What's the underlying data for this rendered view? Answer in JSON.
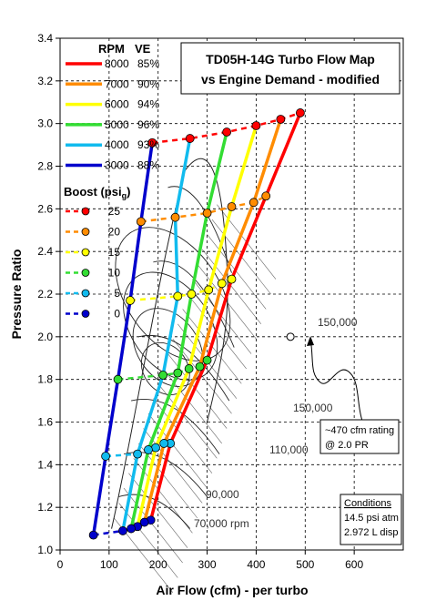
{
  "chart_data": {
    "type": "line",
    "title_lines": [
      "TD05H-14G Turbo Flow Map",
      "vs Engine Demand - modified"
    ],
    "xlabel": "Air Flow (cfm) - per turbo",
    "ylabel": "Pressure Ratio",
    "xlim": [
      0,
      700
    ],
    "ylim": [
      1.0,
      3.4
    ],
    "xticks": [
      0,
      100,
      200,
      300,
      400,
      500,
      600
    ],
    "yticks": [
      1.0,
      1.2,
      1.4,
      1.6,
      1.8,
      2.0,
      2.2,
      2.4,
      2.6,
      2.8,
      3.0,
      3.2,
      3.4
    ],
    "grid": true,
    "legend_rpm_header": {
      "rpm": "RPM",
      "ve": "VE"
    },
    "rpm_series": [
      {
        "rpm": "8000",
        "ve": "85%",
        "color": "#ff0000",
        "points": [
          [
            185,
            1.14
          ],
          [
            225,
            1.5
          ],
          [
            300,
            1.89
          ],
          [
            350,
            2.27
          ],
          [
            420,
            2.66
          ],
          [
            490,
            3.05
          ]
        ]
      },
      {
        "rpm": "7000",
        "ve": "90%",
        "color": "#ff8c00",
        "points": [
          [
            172,
            1.13
          ],
          [
            212,
            1.5
          ],
          [
            285,
            1.86
          ],
          [
            330,
            2.25
          ],
          [
            395,
            2.63
          ],
          [
            450,
            3.02
          ]
        ]
      },
      {
        "rpm": "6000",
        "ve": "94%",
        "color": "#ffff00",
        "points": [
          [
            158,
            1.11
          ],
          [
            195,
            1.48
          ],
          [
            263,
            1.85
          ],
          [
            303,
            2.22
          ],
          [
            350,
            2.61
          ],
          [
            400,
            2.99
          ]
        ]
      },
      {
        "rpm": "5000",
        "ve": "96%",
        "color": "#33dd33",
        "points": [
          [
            145,
            1.1
          ],
          [
            180,
            1.47
          ],
          [
            240,
            1.83
          ],
          [
            268,
            2.2
          ],
          [
            300,
            2.58
          ],
          [
            340,
            2.96
          ]
        ]
      },
      {
        "rpm": "4000",
        "ve": "93%",
        "color": "#11bbee",
        "points": [
          [
            128,
            1.09
          ],
          [
            158,
            1.45
          ],
          [
            210,
            1.82
          ],
          [
            240,
            2.19
          ],
          [
            235,
            2.56
          ],
          [
            265,
            2.93
          ]
        ]
      },
      {
        "rpm": "3000",
        "ve": "88%",
        "color": "#0000cc",
        "points": [
          [
            68,
            1.07
          ],
          [
            93,
            1.44
          ],
          [
            118,
            1.8
          ],
          [
            143,
            2.17
          ],
          [
            165,
            2.54
          ],
          [
            188,
            2.91
          ]
        ]
      }
    ],
    "boost_header": "Boost (psi",
    "boost_subscript": "g",
    "boost_header_close": ")",
    "boost_series": [
      {
        "psi": "25",
        "color": "#ff0000",
        "y": [
          2.91,
          2.93,
          2.96,
          2.99,
          3.02,
          3.05
        ]
      },
      {
        "psi": "20",
        "color": "#ff8c00",
        "y": [
          2.54,
          2.56,
          2.58,
          2.61,
          2.63,
          2.66
        ]
      },
      {
        "psi": "15",
        "color": "#ffff00",
        "y": [
          2.17,
          2.19,
          2.2,
          2.22,
          2.25,
          2.27
        ]
      },
      {
        "psi": "10",
        "color": "#33dd33",
        "y": [
          1.8,
          1.82,
          1.83,
          1.85,
          1.86,
          1.89
        ]
      },
      {
        "psi": "5",
        "color": "#11bbee",
        "y": [
          1.44,
          1.45,
          1.47,
          1.48,
          1.5,
          1.5
        ]
      },
      {
        "psi": "0",
        "color": "#0000cc",
        "y": [
          1.07,
          1.09,
          1.1,
          1.11,
          1.13,
          1.14
        ]
      }
    ],
    "rating_point": {
      "x": 470,
      "y": 2.0
    },
    "annotations": {
      "rating_line1": "~470 cfm rating",
      "rating_line2": "@ 2.0 PR",
      "conditions_title": "Conditions",
      "conditions_line1": "14.5 psi atm",
      "conditions_line2": "2.972 L disp"
    },
    "map_labels": {
      "speed_150000_top": "150,000",
      "speed_150000_bottom": "150,000",
      "speed_110000": "110,000",
      "speed_90000": "90,000",
      "speed_70000": "70,000 rpm"
    }
  }
}
